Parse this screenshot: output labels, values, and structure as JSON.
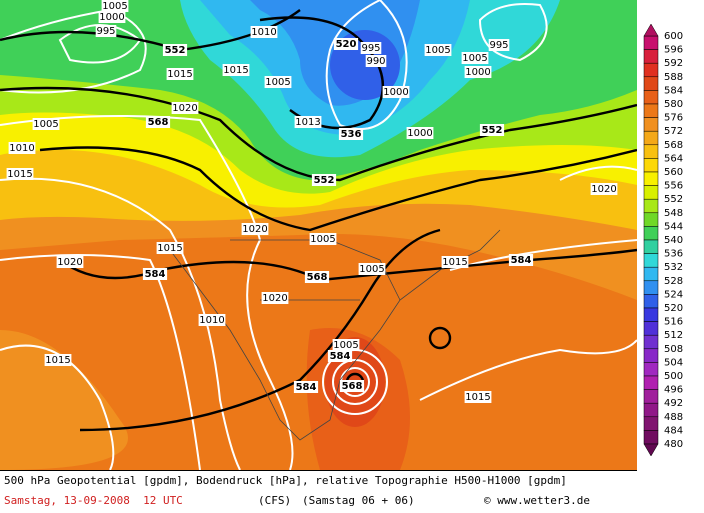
{
  "contour_labels": [
    1005,
    1000,
    995,
    552,
    1015,
    1010,
    1015,
    1005,
    520,
    995,
    990,
    1000,
    1005,
    1005,
    995,
    1000,
    568,
    1020,
    1005,
    1010,
    1015,
    1013,
    536,
    1000,
    552,
    552,
    1020,
    1005,
    1020,
    1015,
    1020,
    584,
    568,
    1005,
    1015,
    584,
    1020,
    1010,
    1015,
    1005,
    584,
    584,
    568,
    1015
  ],
  "colorbar": {
    "levels": [
      600,
      596,
      592,
      588,
      584,
      580,
      576,
      572,
      568,
      564,
      560,
      556,
      552,
      548,
      544,
      540,
      536,
      532,
      528,
      524,
      520,
      516,
      512,
      508,
      504,
      500,
      496,
      492,
      488,
      484,
      480
    ],
    "colors": [
      "#c8106e",
      "#d8203c",
      "#e03020",
      "#e04818",
      "#e86018",
      "#ec7818",
      "#f09020",
      "#f4a818",
      "#f8c010",
      "#fcd808",
      "#f8f000",
      "#d8f000",
      "#a8e818",
      "#70d828",
      "#40d058",
      "#30d0a0",
      "#30d8d8",
      "#30b8f0",
      "#3090f0",
      "#3060e8",
      "#3838e0",
      "#5030d8",
      "#7030d0",
      "#8828c8",
      "#a028c0",
      "#b020b0",
      "#a0209c",
      "#901888",
      "#801470",
      "#700c60"
    ],
    "top_color": "#b01060",
    "bottom_color": "#600850"
  },
  "footer": {
    "description": "500 hPa Geopotential [gpdm], Bodendruck [hPa], relative Topographie H500-H1000 [gpdm]",
    "date": "Samstag, 13-09-2008  12 UTC",
    "model": "(CFS)",
    "run": "(Samstag 06 + 06)",
    "credit": "© www.wetter3.de"
  }
}
